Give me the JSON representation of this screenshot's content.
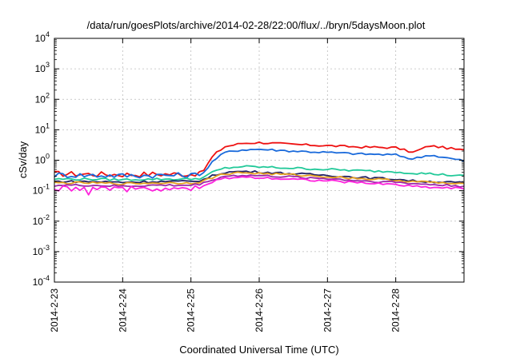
{
  "chart_data": {
    "type": "line",
    "title": "/data/run/goesPlots/archive/2014-02-28/22:00/flux/../bryn/5daysMoon.plot",
    "xlabel": "Coordinated Universal Time (UTC)",
    "ylabel": "cSv/day",
    "yscale": "log",
    "ylim": [
      0.0001,
      10000
    ],
    "xlim": [
      "2014-02-23",
      "2014-02-29"
    ],
    "x_tick_labels": [
      "2014-2-23",
      "2014-2-24",
      "2014-2-25",
      "2014-2-26",
      "2014-2-27",
      "2014-2-28"
    ],
    "y_tick_labels": [
      {
        "base": "10",
        "exp": "-4"
      },
      {
        "base": "10",
        "exp": "-3"
      },
      {
        "base": "10",
        "exp": "-2"
      },
      {
        "base": "10",
        "exp": "-1"
      },
      {
        "base": "10",
        "exp": "0"
      },
      {
        "base": "10",
        "exp": "1"
      },
      {
        "base": "10",
        "exp": "2"
      },
      {
        "base": "10",
        "exp": "3"
      },
      {
        "base": "10",
        "exp": "4"
      }
    ],
    "grid": true,
    "x": [
      "2014-02-23",
      "2014-02-23T12:00",
      "2014-02-24",
      "2014-02-24T12:00",
      "2014-02-25",
      "2014-02-25T04:00",
      "2014-02-25T08:00",
      "2014-02-25T12:00",
      "2014-02-25T18:00",
      "2014-02-26",
      "2014-02-26T12:00",
      "2014-02-27",
      "2014-02-27T12:00",
      "2014-02-28",
      "2014-02-28T06:00",
      "2014-02-28T12:00",
      "2014-02-29"
    ],
    "series": [
      {
        "color": "#ee1111",
        "values": [
          0.36,
          0.35,
          0.34,
          0.35,
          0.35,
          0.4,
          1.5,
          2.8,
          3.6,
          3.8,
          3.3,
          3.0,
          2.7,
          2.6,
          1.8,
          3.0,
          2.1
        ]
      },
      {
        "color": "#1a6adb",
        "values": [
          0.33,
          0.32,
          0.31,
          0.32,
          0.32,
          0.35,
          1.0,
          1.8,
          2.2,
          2.3,
          2.0,
          1.8,
          1.6,
          1.5,
          1.1,
          1.5,
          0.95
        ]
      },
      {
        "color": "#22c999",
        "values": [
          0.24,
          0.24,
          0.23,
          0.24,
          0.24,
          0.26,
          0.42,
          0.55,
          0.62,
          0.6,
          0.55,
          0.5,
          0.45,
          0.42,
          0.38,
          0.36,
          0.3
        ]
      },
      {
        "color": "#222266",
        "values": [
          0.2,
          0.2,
          0.19,
          0.2,
          0.2,
          0.22,
          0.32,
          0.4,
          0.43,
          0.41,
          0.36,
          0.32,
          0.27,
          0.24,
          0.21,
          0.2,
          0.18
        ]
      },
      {
        "color": "#e6a020",
        "values": [
          0.18,
          0.18,
          0.17,
          0.18,
          0.18,
          0.2,
          0.28,
          0.36,
          0.39,
          0.37,
          0.33,
          0.29,
          0.25,
          0.22,
          0.2,
          0.19,
          0.16
        ]
      },
      {
        "color": "#9b2aa8",
        "values": [
          0.15,
          0.15,
          0.14,
          0.15,
          0.15,
          0.17,
          0.24,
          0.3,
          0.32,
          0.31,
          0.28,
          0.25,
          0.21,
          0.19,
          0.17,
          0.16,
          0.14
        ]
      },
      {
        "color": "#ff22dd",
        "values": [
          0.12,
          0.12,
          0.11,
          0.12,
          0.12,
          0.13,
          0.2,
          0.26,
          0.28,
          0.27,
          0.24,
          0.21,
          0.18,
          0.16,
          0.14,
          0.13,
          0.12
        ]
      }
    ]
  }
}
